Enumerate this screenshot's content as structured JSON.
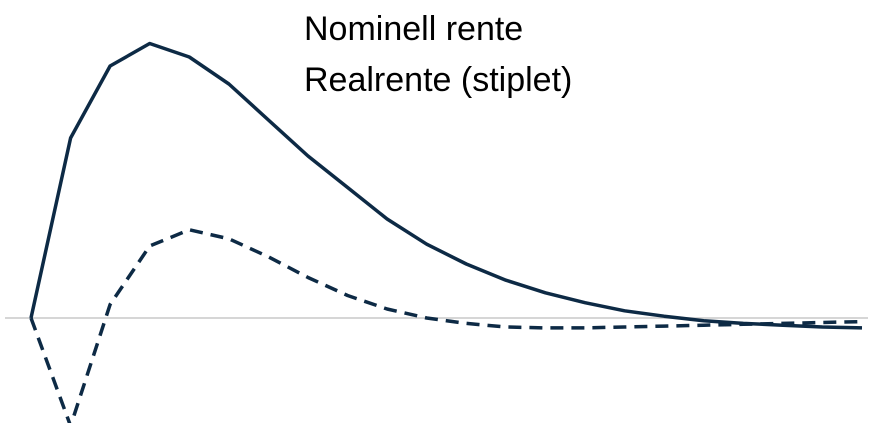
{
  "chart_data": {
    "type": "line",
    "title": "",
    "xlabel": "",
    "ylabel": "",
    "grid": false,
    "legend_position": "top-right",
    "legend": [
      "Nominell rente",
      "Realrente (stiplet)"
    ],
    "x": [
      0,
      1,
      2,
      3,
      4,
      5,
      6,
      7,
      8,
      9,
      10,
      11,
      12,
      13,
      14,
      15,
      16,
      17,
      18,
      19,
      20,
      21
    ],
    "ylim": [
      -1.27,
      3.4
    ],
    "series": [
      {
        "name": "Nominell rente",
        "style": "solid",
        "color": "#0d2a45",
        "values": [
          0,
          2.0,
          2.8,
          3.05,
          2.9,
          2.6,
          2.2,
          1.8,
          1.45,
          1.1,
          0.82,
          0.6,
          0.42,
          0.28,
          0.17,
          0.08,
          0.02,
          -0.03,
          -0.06,
          -0.08,
          -0.1,
          -0.11
        ]
      },
      {
        "name": "Realrente (stiplet)",
        "style": "dashed",
        "color": "#0d2a45",
        "values": [
          0,
          -1.2,
          0.15,
          0.8,
          0.98,
          0.88,
          0.68,
          0.45,
          0.25,
          0.1,
          0.0,
          -0.06,
          -0.1,
          -0.11,
          -0.11,
          -0.1,
          -0.09,
          -0.08,
          -0.07,
          -0.06,
          -0.05,
          -0.04
        ]
      }
    ]
  },
  "colors": {
    "line": "#0d2a45",
    "zero_line": "#c8c8c8",
    "background": "#ffffff"
  }
}
